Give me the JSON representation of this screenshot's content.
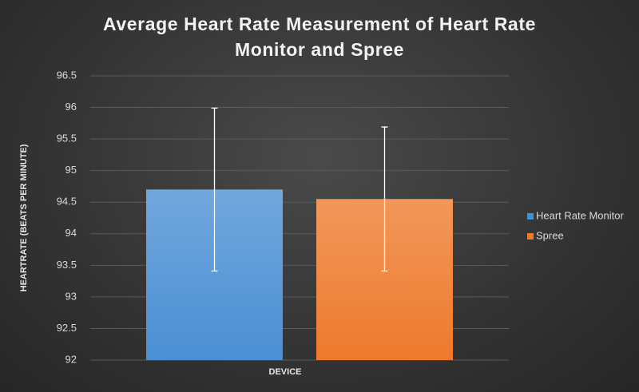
{
  "chart_data": {
    "type": "bar",
    "title": "Average Heart Rate Measurement of Heart Rate Monitor and Spree",
    "x_label": "DEVICE",
    "y_label": "HEARTRATE (BEATS PER MINUTE)",
    "categories": [
      null
    ],
    "series": [
      {
        "name": "Heart Rate Monitor",
        "color": "#4a8fd4",
        "values": [
          94.7
        ],
        "errors": [
          1.29
        ]
      },
      {
        "name": "Spree",
        "color": "#ee7a2c",
        "values": [
          94.55
        ],
        "errors": [
          1.14
        ]
      }
    ],
    "ylim": [
      92,
      96.5
    ],
    "yticks": [
      92,
      92.5,
      93,
      93.5,
      94,
      94.5,
      95,
      95.5,
      96,
      96.5
    ],
    "grid": true,
    "legend": "right"
  }
}
